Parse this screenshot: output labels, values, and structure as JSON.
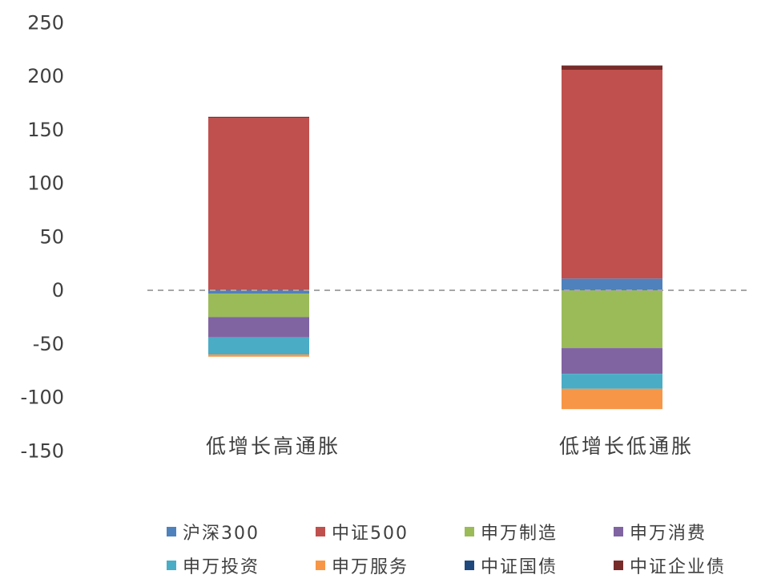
{
  "chart_data": {
    "type": "bar",
    "stacked": true,
    "categories": [
      "低增长高通胀",
      "低增长低通胀"
    ],
    "ylim": [
      -150,
      250
    ],
    "yticks": [
      250,
      200,
      150,
      100,
      50,
      0,
      -50,
      -100,
      -150
    ],
    "zero_line": "dashed",
    "grid": false,
    "legend_position": "bottom",
    "series": [
      {
        "name": "沪深300",
        "color": "#4f81bd",
        "values": [
          -3,
          11
        ]
      },
      {
        "name": "中证500",
        "color": "#c0504d",
        "values": [
          161,
          195
        ]
      },
      {
        "name": "申万制造",
        "color": "#9bbb59",
        "values": [
          -22,
          -54
        ]
      },
      {
        "name": "申万消费",
        "color": "#8064a2",
        "values": [
          -19,
          -24
        ]
      },
      {
        "name": "申万投资",
        "color": "#4bacc6",
        "values": [
          -16,
          -14
        ]
      },
      {
        "name": "申万服务",
        "color": "#f79646",
        "values": [
          -2,
          -19
        ]
      },
      {
        "name": "中证国债",
        "color": "#1f497d",
        "values": [
          0,
          0
        ]
      },
      {
        "name": "中证企业债",
        "color": "#772c2a",
        "values": [
          1,
          4
        ]
      }
    ]
  }
}
